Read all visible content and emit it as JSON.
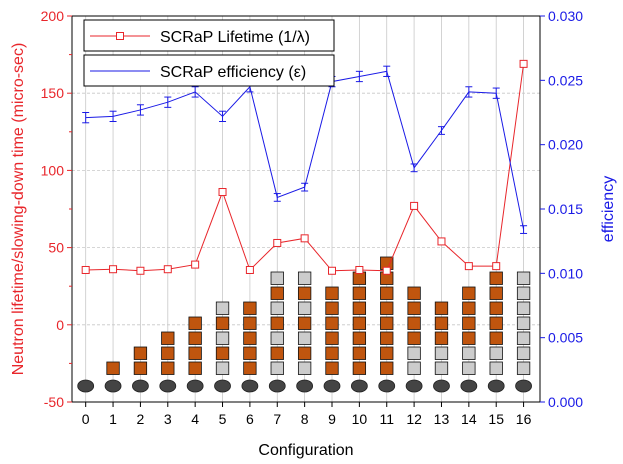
{
  "chart_data": {
    "type": "line",
    "xlabel": "Configuration",
    "ylabel_left": "Neutron lifetime/slowing-down time (micro-sec)",
    "ylabel_right": "efficiency",
    "x": [
      0,
      1,
      2,
      3,
      4,
      5,
      6,
      7,
      8,
      9,
      10,
      11,
      12,
      13,
      14,
      15,
      16
    ],
    "xlim": [
      -0.5,
      16.6
    ],
    "ylim_left": [
      -50,
      200
    ],
    "yticks_left": [
      -50,
      0,
      50,
      100,
      150,
      200
    ],
    "ylim_right": [
      0.0,
      0.03
    ],
    "yticks_right": [
      "0.000",
      "0.005",
      "0.010",
      "0.015",
      "0.020",
      "0.025",
      "0.030"
    ],
    "grid": true,
    "legend_position": "top-left",
    "series": [
      {
        "name": "SCRaP Lifetime (1/λ)",
        "axis": "left",
        "color": "#e8262b",
        "marker": "open-square",
        "values": [
          35.5,
          36,
          35,
          36,
          39,
          86,
          35.5,
          53,
          56,
          35,
          35.5,
          35,
          77,
          54,
          38,
          38,
          169
        ]
      },
      {
        "name": "SCRaP efficiency (ε)",
        "axis": "right",
        "color": "#1a1ae6",
        "marker": "error-bar",
        "values": [
          0.0221,
          0.0222,
          0.0227,
          0.0233,
          0.0241,
          0.0222,
          0.0245,
          0.0159,
          0.0167,
          0.0249,
          0.0253,
          0.0257,
          0.0182,
          0.0211,
          0.0241,
          0.024,
          0.0134
        ],
        "errors": [
          0.0004,
          0.0004,
          0.0004,
          0.0004,
          0.0004,
          0.0004,
          0.0004,
          0.0003,
          0.0003,
          0.0004,
          0.0004,
          0.0004,
          0.0003,
          0.0003,
          0.0004,
          0.0004,
          0.0003
        ]
      }
    ],
    "configuration_stacks": {
      "description": "Stacked squares below each configuration; o = orange, g = gray, bottom to top",
      "colors": {
        "orange": "#c0550e",
        "gray": "#cccccc",
        "disk": "#444444"
      },
      "stacks": [
        "",
        "o",
        "oo",
        "ooo",
        "oooo",
        "gogog",
        "ooooo",
        "gogogog",
        "gogogog",
        "oooooo",
        "ooooooo",
        "oooooooo",
        "ggoooo",
        "ggooo",
        "ggoooo",
        "ggooooo",
        "ggggggg"
      ]
    }
  }
}
